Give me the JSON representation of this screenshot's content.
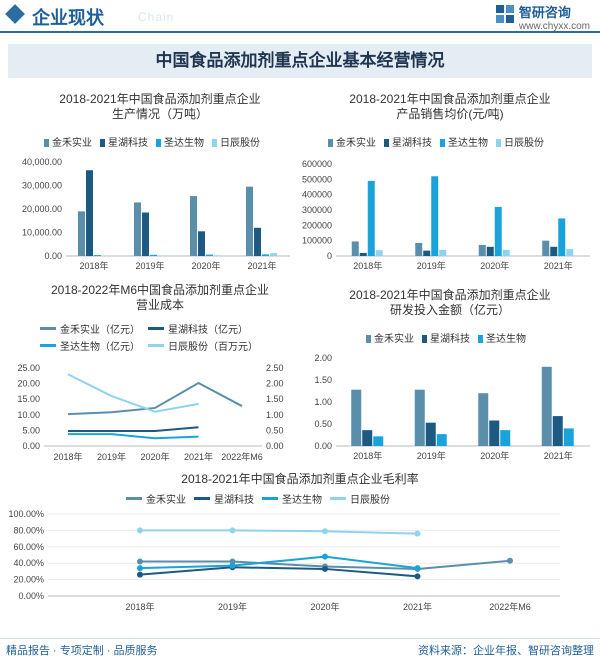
{
  "header": {
    "section_title": "企业现状",
    "ghost_text": "Chain",
    "brand_name": "智研咨询",
    "brand_url": "www.chyxx.com"
  },
  "banner_title": "中国食品添加剂重点企业基本经营情况",
  "footer": {
    "left": "精品报告 · 专项定制 · 品质服务",
    "right": "资料来源：企业年报、智研咨询整理"
  },
  "colors": {
    "jinhe": "#5a8fab",
    "xinghu": "#1d5a82",
    "shengda": "#1aa3da",
    "rizhen": "#8fd3ef",
    "brand": "#1f5f99"
  },
  "chart_data": [
    {
      "type": "bar",
      "title": "2018-2021年中国食品添加剂重点企业生产情况（万吨）",
      "title_lines": [
        "2018-2021年中国食品添加剂重点企业",
        "生产情况（万吨）"
      ],
      "categories": [
        "2018年",
        "2019年",
        "2020年",
        "2021年"
      ],
      "series": [
        {
          "name": "金禾实业",
          "values": [
            19000,
            22800,
            25500,
            29500
          ]
        },
        {
          "name": "星湖科技",
          "values": [
            36500,
            18500,
            10500,
            12000
          ]
        },
        {
          "name": "圣达生物",
          "values": [
            400,
            500,
            600,
            700
          ]
        },
        {
          "name": "日辰股份",
          "values": [
            200,
            250,
            300,
            1200
          ]
        }
      ],
      "ylim": [
        0,
        40000
      ],
      "yticks": [
        "0.00",
        "10,000.00",
        "20,000.00",
        "30,000.00",
        "40,000.00"
      ]
    },
    {
      "type": "bar",
      "title": "2018-2021年中国食品添加剂重点企业产品销售均价(元/吨)",
      "title_lines": [
        "2018-2021年中国食品添加剂重点企业",
        "产品销售均价(元/吨)"
      ],
      "categories": [
        "2018年",
        "2019年",
        "2020年",
        "2021年"
      ],
      "series": [
        {
          "name": "金禾实业",
          "values": [
            95000,
            85000,
            72000,
            100000
          ]
        },
        {
          "name": "星湖科技",
          "values": [
            20000,
            35000,
            60000,
            60000
          ]
        },
        {
          "name": "圣达生物",
          "values": [
            490000,
            520000,
            320000,
            245000
          ]
        },
        {
          "name": "日辰股份",
          "values": [
            38000,
            40000,
            40000,
            45000
          ]
        }
      ],
      "ylim": [
        0,
        600000
      ],
      "yticks": [
        "0",
        "100000",
        "200000",
        "300000",
        "400000",
        "500000",
        "600000"
      ]
    },
    {
      "type": "line",
      "title": "2018-2022年M6中国食品添加剂重点企业营业成本",
      "title_lines": [
        "2018-2022年M6中国食品添加剂重点企业",
        "营业成本"
      ],
      "categories": [
        "2018年",
        "2019年",
        "2020年",
        "2021年",
        "2022年M6"
      ],
      "series": [
        {
          "name": "金禾实业（亿元）",
          "axis": "left",
          "values": [
            10.2,
            10.8,
            12.2,
            20.2,
            12.8
          ]
        },
        {
          "name": "星湖科技（亿元）",
          "axis": "left",
          "values": [
            4.8,
            4.8,
            4.8,
            6.0,
            null
          ]
        },
        {
          "name": "圣达生物（亿元）",
          "axis": "left",
          "values": [
            3.8,
            3.8,
            2.5,
            3.0,
            null
          ]
        },
        {
          "name": "日辰股份（百万元）",
          "axis": "right",
          "values": [
            2.3,
            1.6,
            1.1,
            1.35,
            null
          ]
        }
      ],
      "ylim_left": [
        0,
        25
      ],
      "ylim_right": [
        0,
        2.5
      ],
      "yticks_left": [
        "0.00",
        "5.00",
        "10.00",
        "15.00",
        "20.00",
        "25.00"
      ],
      "yticks_right": [
        "0.00",
        "0.50",
        "1.00",
        "1.50",
        "2.00",
        "2.50"
      ]
    },
    {
      "type": "bar",
      "title": "2018-2021年中国食品添加剂重点企业研发投入金额（亿元）",
      "title_lines": [
        "2018-2021年中国食品添加剂重点企业",
        "研发投入金额（亿元）"
      ],
      "categories": [
        "2018年",
        "2019年",
        "2020年",
        "2021年"
      ],
      "series": [
        {
          "name": "金禾实业",
          "values": [
            1.28,
            1.28,
            1.2,
            1.8
          ]
        },
        {
          "name": "星湖科技",
          "values": [
            0.36,
            0.53,
            0.58,
            0.68
          ]
        },
        {
          "name": "圣达生物",
          "values": [
            0.22,
            0.27,
            0.36,
            0.4
          ]
        }
      ],
      "ylim": [
        0,
        2
      ],
      "yticks": [
        "0.00",
        "0.50",
        "1.00",
        "1.50",
        "2.00"
      ]
    },
    {
      "type": "line",
      "title": "2018-2021年中国食品添加剂重点企业毛利率",
      "title_lines": [
        "2018-2021年中国食品添加剂重点企业毛利率"
      ],
      "categories": [
        "2018年",
        "2019年",
        "2020年",
        "2021年",
        "2022年M6"
      ],
      "series": [
        {
          "name": "金禾实业",
          "values": [
            42,
            42,
            36,
            33,
            43
          ]
        },
        {
          "name": "星湖科技",
          "values": [
            26,
            35,
            33,
            24,
            null
          ]
        },
        {
          "name": "圣达生物",
          "values": [
            34,
            37,
            48,
            34,
            null
          ]
        },
        {
          "name": "日辰股份",
          "values": [
            80,
            80,
            79,
            76,
            null
          ]
        }
      ],
      "ylim": [
        0,
        100
      ],
      "yticks": [
        "0.00%",
        "20.00%",
        "40.00%",
        "60.00%",
        "80.00%",
        "100.00%"
      ]
    }
  ]
}
